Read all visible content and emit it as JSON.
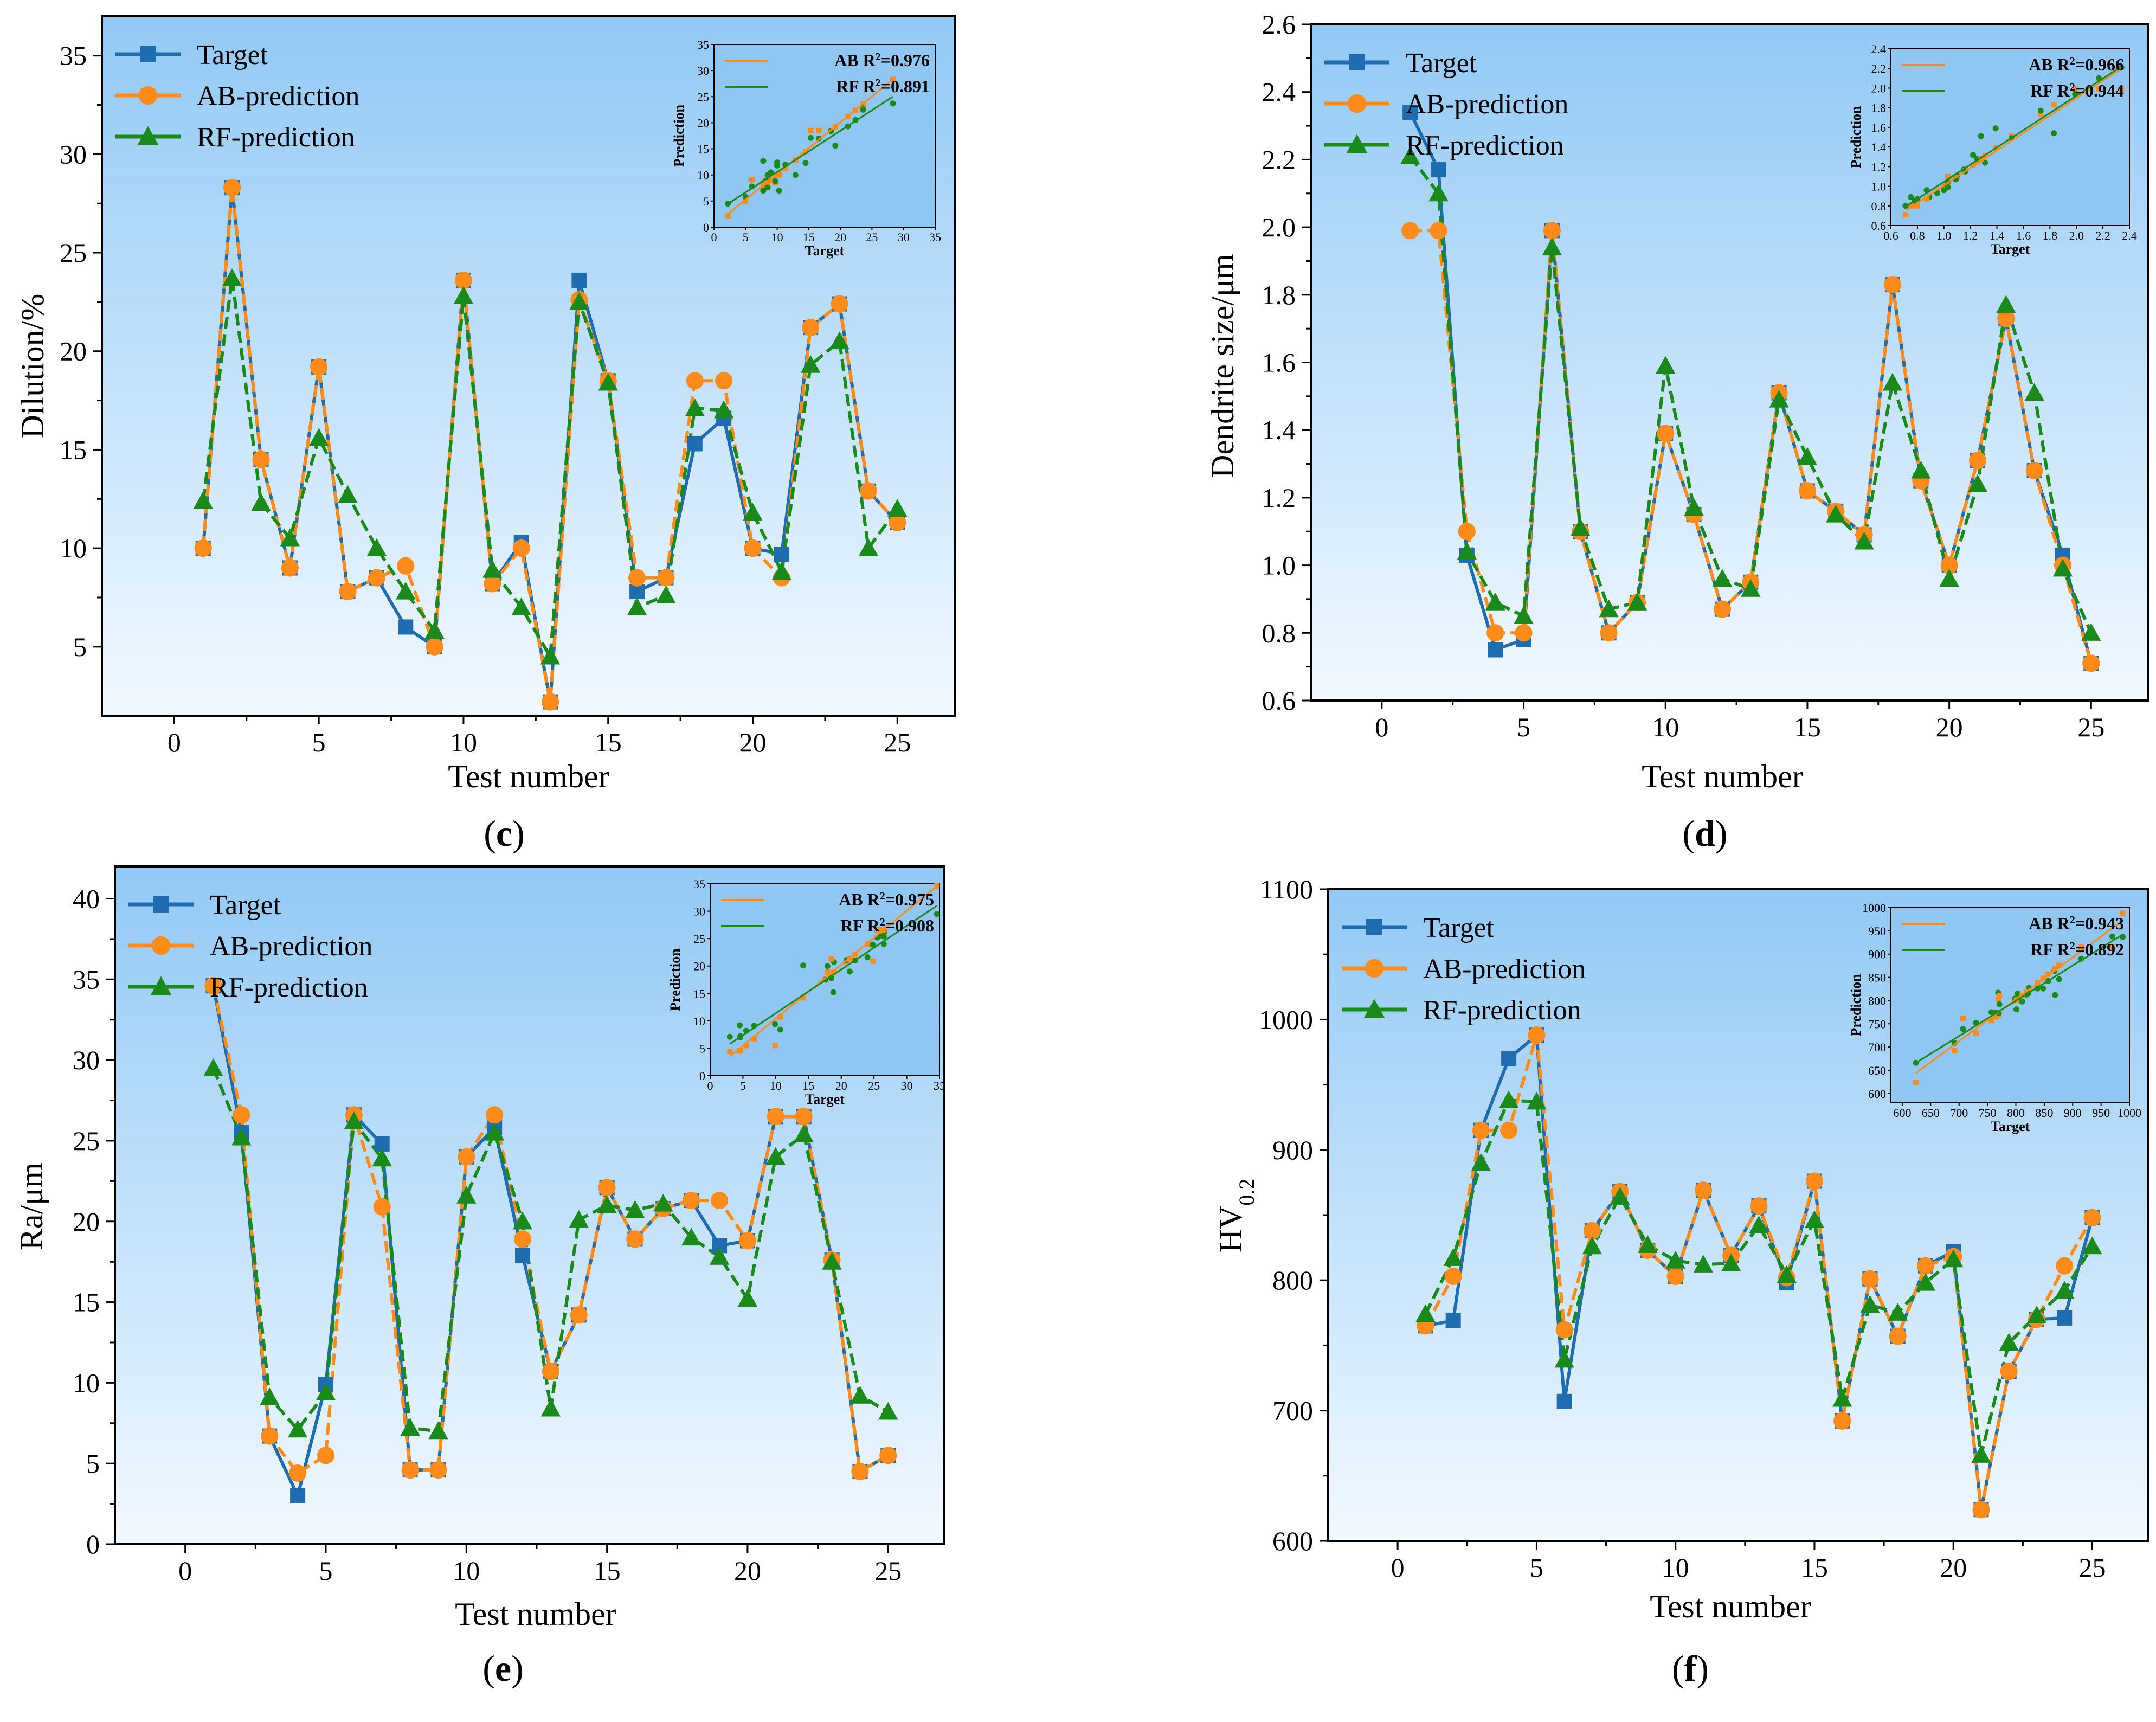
{
  "colors": {
    "target": "#1f6cb0",
    "ab": "#ff8c1a",
    "rf": "#1a8a1a",
    "bg_top": "#92c9f5",
    "bg_bottom": "#f2f9ff"
  },
  "legend_labels": [
    "Target",
    "AB-prediction",
    "RF-prediction"
  ],
  "chart_data": [
    {
      "id": "c",
      "type": "line",
      "caption": "c",
      "xlabel": "Test number",
      "ylabel": "Dilution/%",
      "xlim": [
        -2.5,
        27
      ],
      "ylim": [
        1.5,
        37
      ],
      "xticks": [
        0,
        5,
        10,
        15,
        20,
        25
      ],
      "xtick_labels": [
        "0",
        "5",
        "10",
        "15",
        "20",
        "25"
      ],
      "yticks": [
        5,
        10,
        15,
        20,
        25,
        30,
        35
      ],
      "ytick_labels": [
        "5",
        "10",
        "15",
        "20",
        "25",
        "30",
        "35"
      ],
      "x": [
        1,
        2,
        3,
        4,
        5,
        6,
        7,
        8,
        9,
        10,
        11,
        12,
        13,
        14,
        15,
        16,
        17,
        18,
        19,
        20,
        21,
        22,
        23,
        24,
        25
      ],
      "series": [
        {
          "name": "Target",
          "values": [
            10.0,
            28.3,
            14.5,
            9.0,
            19.2,
            7.8,
            8.5,
            6.0,
            5.0,
            23.6,
            8.2,
            10.3,
            2.2,
            23.6,
            18.5,
            7.8,
            8.5,
            15.3,
            16.6,
            10.0,
            9.7,
            21.2,
            22.4,
            12.9,
            11.3
          ]
        },
        {
          "name": "AB-prediction",
          "values": [
            10.0,
            28.3,
            14.5,
            9.0,
            19.2,
            7.8,
            8.5,
            9.1,
            5.0,
            23.6,
            8.2,
            10.0,
            2.2,
            22.6,
            18.5,
            8.5,
            8.5,
            18.5,
            18.5,
            10.0,
            8.5,
            21.2,
            22.4,
            12.9,
            11.3
          ]
        },
        {
          "name": "RF-prediction",
          "values": [
            12.4,
            23.7,
            12.3,
            10.5,
            15.6,
            12.7,
            10.0,
            7.8,
            5.8,
            22.8,
            8.9,
            7.0,
            4.5,
            22.5,
            18.4,
            7.0,
            7.6,
            17.1,
            17.0,
            11.8,
            8.8,
            19.3,
            20.5,
            10.0,
            12.0
          ]
        }
      ],
      "inset": {
        "xlabel": "Target",
        "ylabel": "Prediction",
        "xlim": [
          0,
          35
        ],
        "ylim": [
          0,
          35
        ],
        "xticks": [
          0,
          5,
          10,
          15,
          20,
          25,
          30,
          35
        ],
        "xtick_labels": [
          "0",
          "5",
          "10",
          "15",
          "20",
          "25",
          "30",
          "35"
        ],
        "yticks": [
          0,
          5,
          10,
          15,
          20,
          25,
          30,
          35
        ],
        "ytick_labels": [
          "0",
          "5",
          "10",
          "15",
          "20",
          "25",
          "30",
          "35"
        ],
        "ab_label": "AB R",
        "ab_r2": "=0.976",
        "rf_label": "RF R",
        "rf_r2": "=0.891",
        "ab_fit": [
          [
            2,
            2.3
          ],
          [
            28.3,
            28.3
          ]
        ],
        "rf_fit": [
          [
            2,
            4.3
          ],
          [
            28.3,
            25.0
          ]
        ]
      }
    },
    {
      "id": "d",
      "type": "line",
      "caption": "d",
      "xlabel": "Test number",
      "ylabel": "Dendrite size/μm",
      "xlim": [
        -2.5,
        27
      ],
      "ylim": [
        0.6,
        2.6
      ],
      "xticks": [
        0,
        5,
        10,
        15,
        20,
        25
      ],
      "xtick_labels": [
        "0",
        "5",
        "10",
        "15",
        "20",
        "25"
      ],
      "yticks": [
        0.6,
        0.8,
        1.0,
        1.2,
        1.4,
        1.6,
        1.8,
        2.0,
        2.2,
        2.4,
        2.6
      ],
      "ytick_labels": [
        "0.6",
        "0.8",
        "1.0",
        "1.2",
        "1.4",
        "1.6",
        "1.8",
        "2.0",
        "2.2",
        "2.4",
        "2.6"
      ],
      "x": [
        1,
        2,
        3,
        4,
        5,
        6,
        7,
        8,
        9,
        10,
        11,
        12,
        13,
        14,
        15,
        16,
        17,
        18,
        19,
        20,
        21,
        22,
        23,
        24,
        25
      ],
      "series": [
        {
          "name": "Target",
          "values": [
            2.34,
            2.17,
            1.03,
            0.75,
            0.78,
            1.99,
            1.1,
            0.8,
            0.89,
            1.39,
            1.15,
            0.87,
            0.95,
            1.51,
            1.22,
            1.16,
            1.09,
            1.83,
            1.25,
            1.0,
            1.31,
            1.73,
            1.28,
            1.03,
            0.71
          ]
        },
        {
          "name": "AB-prediction",
          "values": [
            1.99,
            1.99,
            1.1,
            0.8,
            0.8,
            1.99,
            1.1,
            0.8,
            0.89,
            1.39,
            1.15,
            0.87,
            0.95,
            1.51,
            1.22,
            1.16,
            1.09,
            1.83,
            1.25,
            1.0,
            1.31,
            1.73,
            1.28,
            1.0,
            0.71
          ]
        },
        {
          "name": "RF-prediction",
          "values": [
            2.21,
            2.1,
            1.04,
            0.89,
            0.85,
            1.94,
            1.11,
            0.87,
            0.89,
            1.59,
            1.17,
            0.96,
            0.93,
            1.49,
            1.32,
            1.15,
            1.07,
            1.54,
            1.28,
            0.96,
            1.24,
            1.77,
            1.51,
            0.99,
            0.8
          ]
        }
      ],
      "inset": {
        "xlabel": "Target",
        "ylabel": "Prediction",
        "xlim": [
          0.6,
          2.4
        ],
        "ylim": [
          0.6,
          2.4
        ],
        "xticks": [
          0.6,
          0.8,
          1.0,
          1.2,
          1.4,
          1.6,
          1.8,
          2.0,
          2.2,
          2.4
        ],
        "xtick_labels": [
          "0.6",
          "0.8",
          "1.0",
          "1.2",
          "1.4",
          "1.6",
          "1.8",
          "2.0",
          "2.2",
          "2.4"
        ],
        "yticks": [
          0.6,
          0.8,
          1.0,
          1.2,
          1.4,
          1.6,
          1.8,
          2.0,
          2.2,
          2.4
        ],
        "ytick_labels": [
          "0.6",
          "0.8",
          "1.0",
          "1.2",
          "1.4",
          "1.6",
          "1.8",
          "2.0",
          "2.2",
          "2.4"
        ],
        "ab_label": "AB R",
        "ab_r2": "=0.966",
        "rf_label": "RF R",
        "rf_r2": "=0.944",
        "ab_fit": [
          [
            0.72,
            0.76
          ],
          [
            2.34,
            2.2
          ]
        ],
        "rf_fit": [
          [
            0.72,
            0.8
          ],
          [
            2.34,
            2.22
          ]
        ]
      }
    },
    {
      "id": "e",
      "type": "line",
      "caption": "e",
      "xlabel": "Test number",
      "ylabel": "Ra/μm",
      "xlim": [
        -2.5,
        27
      ],
      "ylim": [
        0,
        42
      ],
      "xticks": [
        0,
        5,
        10,
        15,
        20,
        25
      ],
      "xtick_labels": [
        "0",
        "5",
        "10",
        "15",
        "20",
        "25"
      ],
      "yticks": [
        0,
        5,
        10,
        15,
        20,
        25,
        30,
        35,
        40
      ],
      "ytick_labels": [
        "0",
        "5",
        "10",
        "15",
        "20",
        "25",
        "30",
        "35",
        "40"
      ],
      "x": [
        1,
        2,
        3,
        4,
        5,
        6,
        7,
        8,
        9,
        10,
        11,
        12,
        13,
        14,
        15,
        16,
        17,
        18,
        19,
        20,
        21,
        22,
        23,
        24,
        25
      ],
      "series": [
        {
          "name": "Target",
          "values": [
            34.6,
            25.5,
            6.7,
            3.0,
            9.9,
            26.6,
            24.8,
            4.6,
            4.6,
            24.0,
            25.8,
            17.9,
            10.7,
            14.2,
            22.1,
            18.9,
            20.8,
            21.3,
            18.5,
            18.8,
            26.5,
            26.5,
            17.6,
            4.5,
            5.5
          ]
        },
        {
          "name": "AB-prediction",
          "values": [
            34.6,
            26.6,
            6.7,
            4.4,
            5.5,
            26.6,
            20.9,
            4.6,
            4.6,
            24.0,
            26.6,
            18.9,
            10.7,
            14.2,
            22.1,
            18.9,
            20.8,
            21.3,
            21.3,
            18.8,
            26.5,
            26.5,
            17.6,
            4.5,
            5.5
          ]
        },
        {
          "name": "RF-prediction",
          "values": [
            29.5,
            25.2,
            9.1,
            7.1,
            9.4,
            26.2,
            23.9,
            7.2,
            7.0,
            21.6,
            25.5,
            20.0,
            8.4,
            20.1,
            21.0,
            20.7,
            21.1,
            19.0,
            17.8,
            15.2,
            24.0,
            25.4,
            17.5,
            9.2,
            8.2
          ]
        }
      ],
      "inset": {
        "xlabel": "Target",
        "ylabel": "Prediction",
        "xlim": [
          0,
          35
        ],
        "ylim": [
          0,
          35
        ],
        "xticks": [
          0,
          5,
          10,
          15,
          20,
          25,
          30,
          35
        ],
        "xtick_labels": [
          "0",
          "5",
          "10",
          "15",
          "20",
          "25",
          "30",
          "35"
        ],
        "yticks": [
          0,
          5,
          10,
          15,
          20,
          25,
          30,
          35
        ],
        "ytick_labels": [
          "0",
          "5",
          "10",
          "15",
          "20",
          "25",
          "30",
          "35"
        ],
        "ab_label": "AB R",
        "ab_r2": "=0.975",
        "rf_label": "RF R",
        "rf_r2": "=0.908",
        "ab_fit": [
          [
            3,
            3.5
          ],
          [
            34.6,
            34.6
          ]
        ],
        "rf_fit": [
          [
            3,
            5.8
          ],
          [
            34.6,
            31.0
          ]
        ]
      }
    },
    {
      "id": "f",
      "type": "line",
      "caption": "f",
      "xlabel": "Test number",
      "ylabel": "HV",
      "ylabel_sub": "0.2",
      "xlim": [
        -2.5,
        27
      ],
      "ylim": [
        600,
        1100
      ],
      "xticks": [
        0,
        5,
        10,
        15,
        20,
        25
      ],
      "xtick_labels": [
        "0",
        "5",
        "10",
        "15",
        "20",
        "25"
      ],
      "yticks": [
        600,
        700,
        800,
        900,
        1000,
        1100
      ],
      "ytick_labels": [
        "600",
        "700",
        "800",
        "900",
        "1000",
        "1100"
      ],
      "x": [
        1,
        2,
        3,
        4,
        5,
        6,
        7,
        8,
        9,
        10,
        11,
        12,
        13,
        14,
        15,
        16,
        17,
        18,
        19,
        20,
        21,
        22,
        23,
        24,
        25
      ],
      "series": [
        {
          "name": "Target",
          "values": [
            765,
            769,
            915,
            970,
            988,
            707,
            838,
            868,
            823,
            803,
            869,
            819,
            857,
            798,
            876,
            692,
            801,
            757,
            811,
            822,
            624,
            730,
            770,
            771,
            848
          ]
        },
        {
          "name": "AB-prediction",
          "values": [
            765,
            803,
            915,
            915,
            988,
            762,
            838,
            868,
            823,
            803,
            869,
            819,
            857,
            802,
            876,
            692,
            801,
            757,
            811,
            818,
            624,
            730,
            770,
            811,
            848
          ]
        },
        {
          "name": "RF-prediction",
          "values": [
            774,
            817,
            890,
            938,
            937,
            739,
            826,
            864,
            827,
            815,
            812,
            813,
            842,
            804,
            846,
            709,
            781,
            775,
            798,
            816,
            666,
            752,
            773,
            792,
            826
          ]
        }
      ],
      "inset": {
        "xlabel": "Target",
        "ylabel": "Prediction",
        "xlim": [
          580,
          1000
        ],
        "ylim": [
          580,
          1000
        ],
        "xticks": [
          600,
          650,
          700,
          750,
          800,
          850,
          900,
          950,
          1000
        ],
        "xtick_labels": [
          "600",
          "650",
          "700",
          "750",
          "800",
          "850",
          "900",
          "950",
          "1000"
        ],
        "yticks": [
          600,
          650,
          700,
          750,
          800,
          850,
          900,
          950,
          1000
        ],
        "ytick_labels": [
          "600",
          "650",
          "700",
          "750",
          "800",
          "850",
          "900",
          "950",
          "1000"
        ],
        "ab_label": "AB R",
        "ab_r2": "=0.943",
        "rf_label": "RF R",
        "rf_r2": "=0.892",
        "ab_fit": [
          [
            624,
            644
          ],
          [
            988,
            972
          ]
        ],
        "rf_fit": [
          [
            624,
            666
          ],
          [
            988,
            942
          ]
        ]
      }
    }
  ]
}
